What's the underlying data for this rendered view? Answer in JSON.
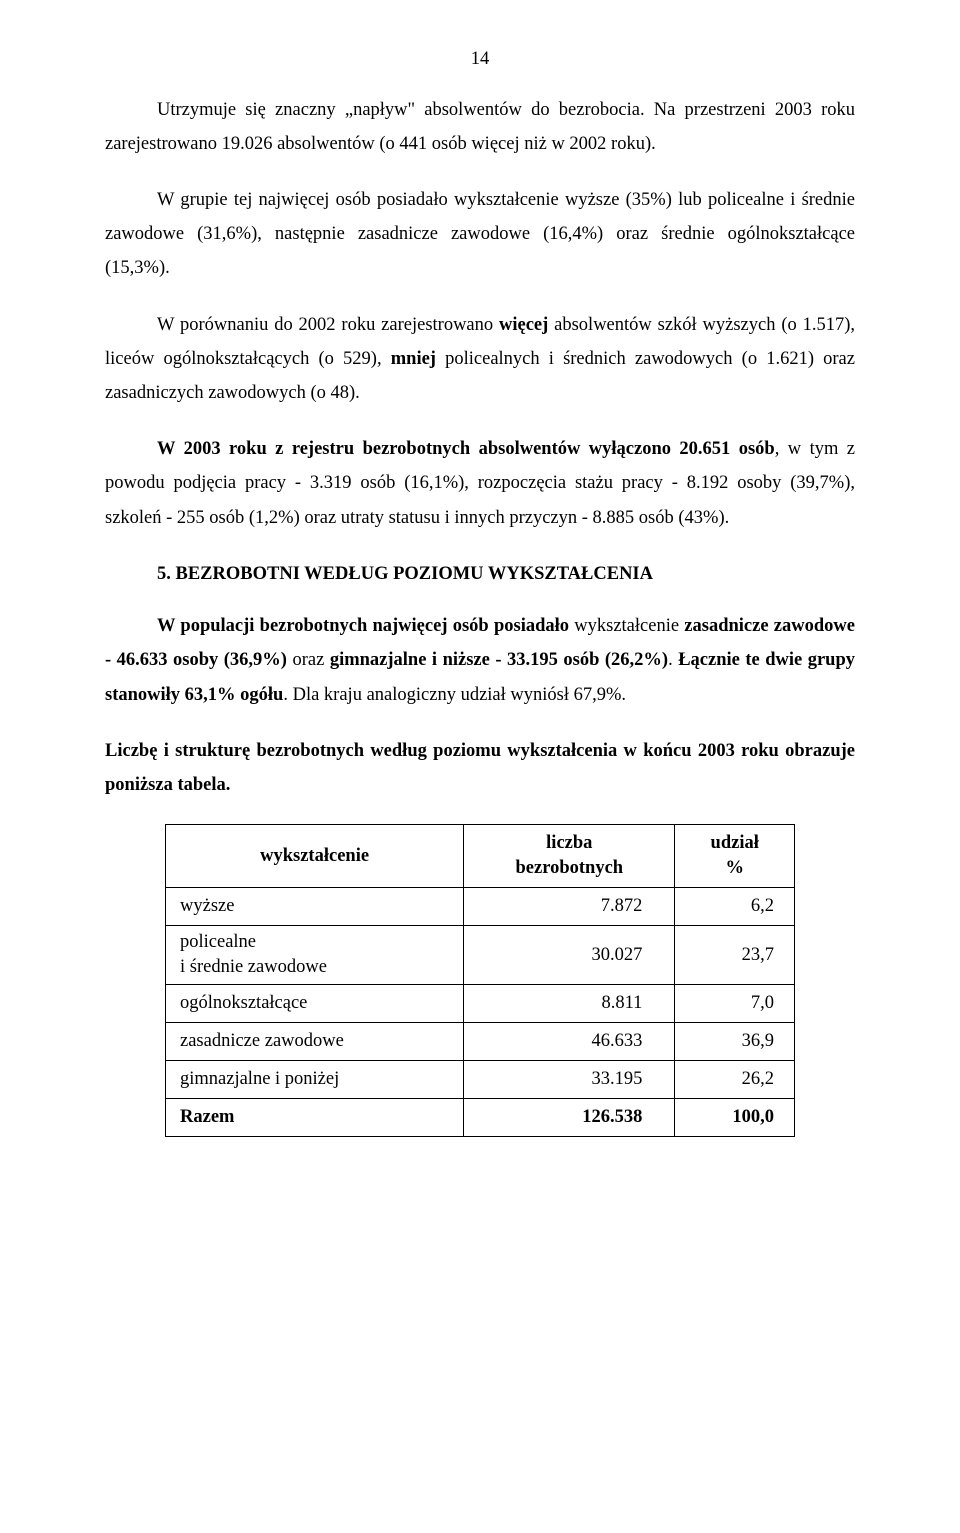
{
  "pageNumber": "14",
  "p1": {
    "t1": "Utrzymuje się znaczny „napływ\" absolwentów do bezrobocia. Na przestrzeni 2003 roku zarejestrowano 19.026 absolwentów (o 441 osób więcej niż w 2002 roku)."
  },
  "p2": {
    "t1": "W grupie tej najwięcej osób posiadało wykształcenie wyższe (35%) lub policealne i średnie zawodowe (31,6%), następnie zasadnicze zawodowe (16,4%) oraz średnie ogólnokształcące (15,3%)."
  },
  "p3": {
    "t1": "W porównaniu do 2002 roku zarejestrowano ",
    "b1": "więcej",
    "t2": " absolwentów szkół wyższych (o 1.517), liceów ogólnokształcących (o 529), ",
    "b2": "mniej",
    "t3": " policealnych i średnich zawodowych (o 1.621) oraz zasadniczych zawodowych (o 48)."
  },
  "p4": {
    "b1": "W 2003 roku z rejestru bezrobotnych absolwentów wyłączono 20.651 osób",
    "t1": ", w tym z powodu podjęcia pracy - 3.319 osób (16,1%), rozpoczęcia stażu pracy - 8.192 osoby (39,7%), szkoleń - 255 osób (1,2%) oraz utraty statusu i innych przyczyn - 8.885 osób (43%)."
  },
  "heading": "5. BEZROBOTNI WEDŁUG POZIOMU WYKSZTAŁCENIA",
  "p5": {
    "b1": "W populacji bezrobotnych najwięcej osób posiadało",
    "t1": " wykształcenie ",
    "b2": "zasadnicze zawodowe - 46.633 osoby (36,9%)",
    "t2": " oraz ",
    "b3": "gimnazjalne i niższe - 33.195 osób (26,2%)",
    "t3": ". ",
    "b4": "Łącznie te dwie grupy stanowiły 63,1% ogółu",
    "t4": ". Dla kraju analogiczny udział wyniósł 67,9%."
  },
  "p6": {
    "b1": "Liczbę i strukturę bezrobotnych według poziomu wykształcenia w końcu 2003 roku obrazuje poniższa tabela."
  },
  "table": {
    "headers": {
      "c1": "wykształcenie",
      "c2a": "liczba",
      "c2b": "bezrobotnych",
      "c3a": "udział",
      "c3b": "%"
    },
    "rows": [
      {
        "label": "wyższe",
        "val1": "7.872",
        "val2": "6,2"
      },
      {
        "labelA": "policealne",
        "labelB": "i średnie zawodowe",
        "val1": "30.027",
        "val2": "23,7"
      },
      {
        "label": "ogólnokształcące",
        "val1": "8.811",
        "val2": "7,0"
      },
      {
        "label": "zasadnicze zawodowe",
        "val1": "46.633",
        "val2": "36,9"
      },
      {
        "label": "gimnazjalne i poniżej",
        "val1": "33.195",
        "val2": "26,2"
      }
    ],
    "total": {
      "label": "Razem",
      "val1": "126.538",
      "val2": "100,0"
    }
  }
}
